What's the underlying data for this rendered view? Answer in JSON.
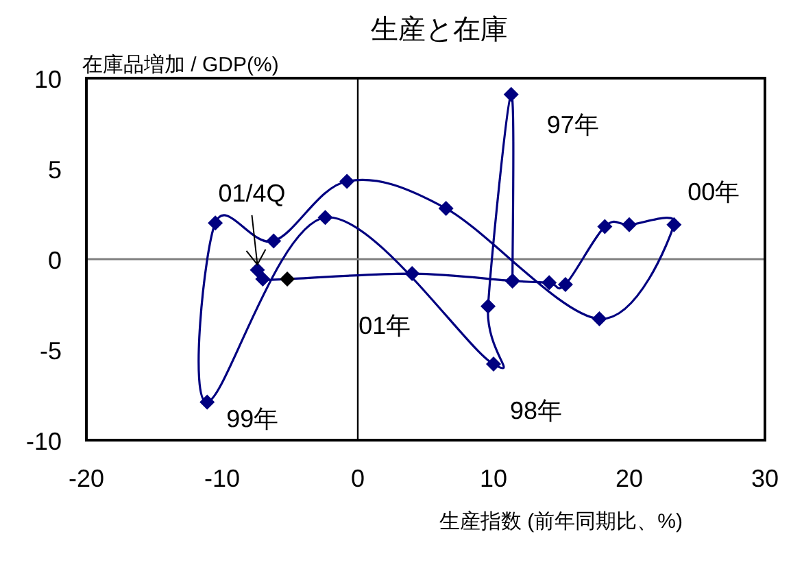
{
  "chart_data": {
    "type": "line",
    "title": "生産と在庫",
    "xlabel": "生産指数 (前年同期比、%)",
    "ylabel": "在庫品増加 / GDP(%)",
    "xlim": [
      -20,
      30
    ],
    "xticks": [
      -20,
      -10,
      0,
      10,
      20,
      30
    ],
    "ylim": [
      -10,
      10
    ],
    "yticks": [
      -10,
      -5,
      0,
      5,
      10
    ],
    "grid": false,
    "marker": "diamond",
    "line_style": "solid",
    "ref_lines": [
      {
        "axis": "x",
        "value": 0,
        "color": "#000000"
      },
      {
        "axis": "y",
        "value": 0,
        "color": "#808080"
      }
    ],
    "series": [
      {
        "color": "#000080",
        "x": [
          11.4,
          11.3,
          9.6,
          10.0,
          -2.4,
          -11.1,
          -10.5,
          -6.2,
          -0.8,
          6.5,
          17.8,
          23.3,
          20.0,
          18.2,
          15.3,
          14.1,
          11.4,
          4.0,
          -5.2,
          -7.0,
          -7.4
        ],
        "values": [
          -1.2,
          9.1,
          -2.6,
          -5.8,
          2.3,
          -7.9,
          2.0,
          1.0,
          4.3,
          2.8,
          -3.3,
          1.9,
          1.9,
          1.8,
          -1.4,
          -1.3,
          -1.2,
          -0.8,
          -1.1,
          -1.1,
          -0.6
        ],
        "colors": [
          "#000080",
          "#000080",
          "#000080",
          "#000080",
          "#000080",
          "#000080",
          "#000080",
          "#000080",
          "#000080",
          "#000080",
          "#000080",
          "#000080",
          "#000080",
          "#000080",
          "#000080",
          "#000080",
          "#000080",
          "#000080",
          "#000000",
          "#000080",
          "#000080"
        ]
      }
    ],
    "annotations": [
      {
        "text": "97年",
        "x": 11.3,
        "y": 9.1
      },
      {
        "text": "98年",
        "x": 10.0,
        "y": -5.8
      },
      {
        "text": "99年",
        "x": -11.1,
        "y": -7.9
      },
      {
        "text": "00年",
        "x": 23.3,
        "y": 1.9
      },
      {
        "text": "01年",
        "x": 4.0,
        "y": -0.8
      },
      {
        "text": "01/4Q",
        "x": -7.4,
        "y": -0.6
      }
    ]
  }
}
